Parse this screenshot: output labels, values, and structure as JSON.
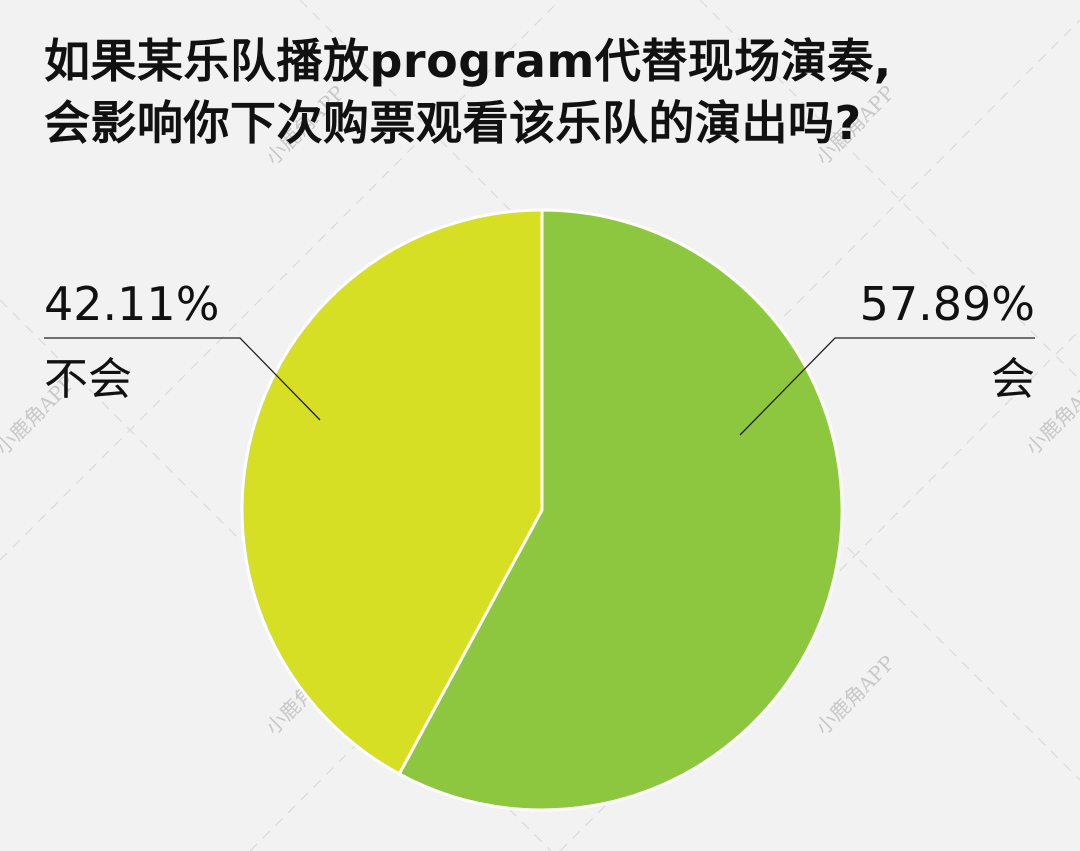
{
  "chart_data": {
    "type": "pie",
    "title_lines": [
      "如果某乐队播放program代替现场演奏,",
      "会影响你下次购票观看该乐队的演出吗?"
    ],
    "slices": [
      {
        "label": "会",
        "value": 57.89,
        "display": "57.89%",
        "color": "#8dc63f"
      },
      {
        "label": "不会",
        "value": 42.11,
        "display": "42.11%",
        "color": "#d6df23"
      }
    ],
    "legend": "none"
  },
  "watermark": {
    "text": "小鹿角APP"
  }
}
